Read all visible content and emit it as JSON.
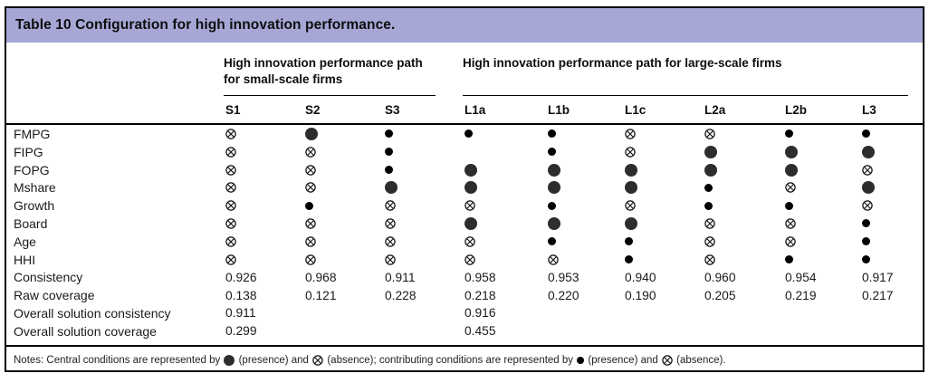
{
  "title": "Table 10 Configuration for high innovation performance.",
  "groups": [
    {
      "label": "High innovation performance path for small-scale firms",
      "columns": [
        "S1",
        "S2",
        "S3"
      ]
    },
    {
      "label": "High innovation performance path for large-scale firms",
      "columns": [
        "L1a",
        "L1b",
        "L1c",
        "L2a",
        "L2b",
        "L3"
      ]
    }
  ],
  "columns": [
    "S1",
    "S2",
    "S3",
    "L1a",
    "L1b",
    "L1c",
    "L2a",
    "L2b",
    "L3"
  ],
  "symbol_legend": {
    "cl": "central-condition-presence-large-filled-circle",
    "cs": "contributing-condition-presence-small-filled-circle",
    "x": "absence-circled-cross",
    "": "blank"
  },
  "condition_rows": [
    {
      "label": "FMPG",
      "cells": [
        "x",
        "cl",
        "cs",
        "cs",
        "cs",
        "x",
        "x",
        "cs",
        "cs"
      ]
    },
    {
      "label": "FIPG",
      "cells": [
        "x",
        "x",
        "cs",
        "",
        "cs",
        "x",
        "cl",
        "cl",
        "cl"
      ]
    },
    {
      "label": "FOPG",
      "cells": [
        "x",
        "x",
        "cs",
        "cl",
        "cl",
        "cl",
        "cl",
        "cl",
        "x"
      ]
    },
    {
      "label": "Mshare",
      "cells": [
        "x",
        "x",
        "cl",
        "cl",
        "cl",
        "cl",
        "cs",
        "x",
        "cl"
      ]
    },
    {
      "label": "Growth",
      "cells": [
        "x",
        "cs",
        "x",
        "x",
        "cs",
        "x",
        "cs",
        "cs",
        "x"
      ]
    },
    {
      "label": "Board",
      "cells": [
        "x",
        "x",
        "x",
        "cl",
        "cl",
        "cl",
        "x",
        "x",
        "cs"
      ]
    },
    {
      "label": "Age",
      "cells": [
        "x",
        "x",
        "x",
        "x",
        "cs",
        "cs",
        "x",
        "x",
        "cs"
      ]
    },
    {
      "label": "HHI",
      "cells": [
        "x",
        "x",
        "x",
        "x",
        "x",
        "cs",
        "x",
        "cs",
        "cs"
      ]
    }
  ],
  "value_rows": [
    {
      "label": "Consistency",
      "values": [
        "0.926",
        "0.968",
        "0.911",
        "0.958",
        "0.953",
        "0.940",
        "0.960",
        "0.954",
        "0.917"
      ]
    },
    {
      "label": "Raw coverage",
      "values": [
        "0.138",
        "0.121",
        "0.228",
        "0.218",
        "0.220",
        "0.190",
        "0.205",
        "0.219",
        "0.217"
      ]
    },
    {
      "label": "Overall solution consistency",
      "values": [
        "0.911",
        "",
        "",
        "0.916",
        "",
        "",
        "",
        "",
        ""
      ]
    },
    {
      "label": "Overall solution coverage",
      "values": [
        "0.299",
        "",
        "",
        "0.455",
        "",
        "",
        "",
        "",
        ""
      ]
    }
  ],
  "notes": {
    "parts": [
      {
        "text": "Notes: Central conditions are represented by "
      },
      {
        "symbol": "cl"
      },
      {
        "text": " (presence) and "
      },
      {
        "symbol": "x"
      },
      {
        "text": " (absence); contributing conditions are represented by "
      },
      {
        "symbol": "cs"
      },
      {
        "text": " (presence) and "
      },
      {
        "symbol": "x"
      },
      {
        "text": " (absence)."
      }
    ]
  },
  "colors": {
    "title_bar_background": "#a7a7d6",
    "central_circle": "#2d2d2d",
    "contributing_circle": "#000000",
    "rule": "#000000"
  }
}
